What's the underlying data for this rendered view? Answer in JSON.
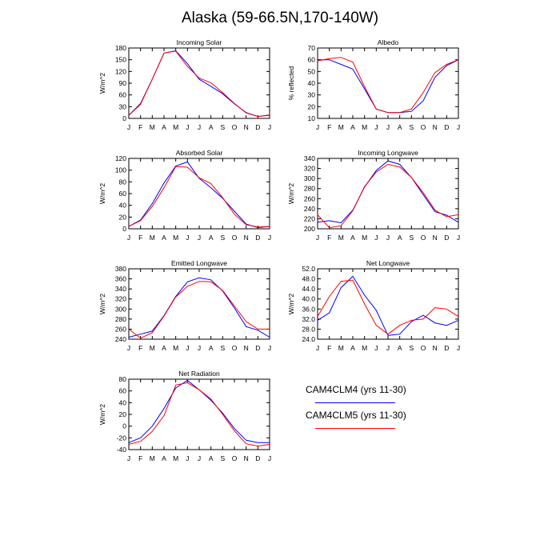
{
  "title": "Alaska (59-66.5N,170-140W)",
  "colors": {
    "series1": "#0000ff",
    "series2": "#ff0000"
  },
  "legend": {
    "series1_label": "CAM4CLM4 (yrs 11-30)",
    "series2_label": "CAM4CLM5 (yrs 11-30)"
  },
  "chart_data": [
    {
      "type": "line",
      "title": "Incoming Solar",
      "ylabel": "W/m^2",
      "categories": [
        "J",
        "F",
        "M",
        "A",
        "M",
        "J",
        "J",
        "A",
        "S",
        "O",
        "N",
        "D",
        "J"
      ],
      "ylim": [
        0,
        180
      ],
      "yticks": [
        0,
        30,
        60,
        90,
        120,
        150,
        180
      ],
      "ytick_labels": [
        "0",
        "30",
        "60",
        "90",
        "120",
        "150",
        "180"
      ],
      "series": [
        {
          "name": "CAM4CLM4 (yrs 11-30)",
          "values": [
            8,
            38,
            100,
            167,
            173,
            140,
            100,
            82,
            63,
            37,
            15,
            5,
            8
          ]
        },
        {
          "name": "CAM4CLM5 (yrs 11-30)",
          "values": [
            8,
            36,
            100,
            167,
            172,
            133,
            103,
            91,
            66,
            38,
            14,
            5,
            9
          ]
        }
      ]
    },
    {
      "type": "line",
      "title": "Albedo",
      "ylabel": "% reflected",
      "categories": [
        "J",
        "F",
        "M",
        "A",
        "M",
        "J",
        "J",
        "A",
        "S",
        "O",
        "N",
        "D",
        "J"
      ],
      "ylim": [
        10,
        70
      ],
      "yticks": [
        10,
        20,
        30,
        40,
        50,
        60,
        70
      ],
      "ytick_labels": [
        "10",
        "20",
        "30",
        "40",
        "50",
        "60",
        "70"
      ],
      "series": [
        {
          "name": "CAM4CLM4 (yrs 11-30)",
          "values": [
            60,
            60,
            56,
            52,
            35,
            18,
            15,
            15,
            16,
            25,
            45,
            55,
            60
          ]
        },
        {
          "name": "CAM4CLM5 (yrs 11-30)",
          "values": [
            59,
            61,
            62,
            58,
            37,
            18,
            15,
            15,
            18,
            32,
            49,
            56,
            60
          ]
        }
      ]
    },
    {
      "type": "line",
      "title": "Absorbed Solar",
      "ylabel": "W/m^2",
      "categories": [
        "J",
        "F",
        "M",
        "A",
        "M",
        "J",
        "J",
        "A",
        "S",
        "O",
        "N",
        "D",
        "J"
      ],
      "ylim": [
        0,
        120
      ],
      "yticks": [
        0,
        20,
        40,
        60,
        80,
        100,
        120
      ],
      "ytick_labels": [
        "0",
        "20",
        "40",
        "60",
        "80",
        "100",
        "120"
      ],
      "series": [
        {
          "name": "CAM4CLM4 (yrs 11-30)",
          "values": [
            4,
            15,
            43,
            78,
            107,
            114,
            86,
            70,
            52,
            30,
            8,
            2,
            4
          ]
        },
        {
          "name": "CAM4CLM5 (yrs 11-30)",
          "values": [
            4,
            14,
            38,
            70,
            106,
            105,
            87,
            77,
            53,
            25,
            7,
            3,
            4
          ]
        }
      ]
    },
    {
      "type": "line",
      "title": "Incoming Longwave",
      "ylabel": "W/m^2",
      "categories": [
        "J",
        "F",
        "M",
        "A",
        "M",
        "J",
        "J",
        "A",
        "S",
        "O",
        "N",
        "D",
        "J"
      ],
      "ylim": [
        200,
        340
      ],
      "yticks": [
        200,
        220,
        240,
        260,
        280,
        300,
        320,
        340
      ],
      "ytick_labels": [
        "200",
        "220",
        "240",
        "260",
        "280",
        "300",
        "320",
        "340"
      ],
      "series": [
        {
          "name": "CAM4CLM4 (yrs 11-30)",
          "values": [
            213,
            216,
            212,
            237,
            283,
            316,
            335,
            328,
            302,
            268,
            234,
            227,
            213
          ]
        },
        {
          "name": "CAM4CLM5 (yrs 11-30)",
          "values": [
            228,
            202,
            206,
            236,
            284,
            313,
            328,
            323,
            302,
            272,
            237,
            224,
            228
          ]
        }
      ]
    },
    {
      "type": "line",
      "title": "Emitted Longwave",
      "ylabel": "W/m^2",
      "categories": [
        "J",
        "F",
        "M",
        "A",
        "M",
        "J",
        "J",
        "A",
        "S",
        "O",
        "N",
        "D",
        "J"
      ],
      "ylim": [
        240,
        380
      ],
      "yticks": [
        240,
        260,
        280,
        300,
        320,
        340,
        360,
        380
      ],
      "ytick_labels": [
        "240",
        "260",
        "280",
        "300",
        "320",
        "340",
        "360",
        "380"
      ],
      "series": [
        {
          "name": "CAM4CLM4 (yrs 11-30)",
          "values": [
            244,
            250,
            256,
            287,
            325,
            354,
            362,
            358,
            336,
            302,
            265,
            258,
            244
          ]
        },
        {
          "name": "CAM4CLM5 (yrs 11-30)",
          "values": [
            260,
            242,
            253,
            286,
            324,
            345,
            355,
            354,
            337,
            306,
            275,
            260,
            260
          ]
        }
      ]
    },
    {
      "type": "line",
      "title": "Net Longwave",
      "ylabel": "W/m^2",
      "categories": [
        "J",
        "F",
        "M",
        "A",
        "M",
        "J",
        "J",
        "A",
        "S",
        "O",
        "N",
        "D",
        "J"
      ],
      "ylim": [
        24,
        52
      ],
      "yticks": [
        24,
        28,
        32,
        36,
        40,
        44,
        48,
        52
      ],
      "ytick_labels": [
        "24.0",
        "28.0",
        "32.0",
        "36.0",
        "40.0",
        "44.0",
        "48.0",
        "52.0"
      ],
      "series": [
        {
          "name": "CAM4CLM4 (yrs 11-30)",
          "values": [
            31.5,
            34.5,
            44.5,
            49,
            41.5,
            35.5,
            25.5,
            26,
            31,
            33.5,
            30.5,
            29.5,
            31.5
          ]
        },
        {
          "name": "CAM4CLM5 (yrs 11-30)",
          "values": [
            33,
            41,
            47,
            47.5,
            38,
            29.5,
            26,
            29.5,
            31.5,
            32,
            36.5,
            36,
            33
          ]
        }
      ]
    },
    {
      "type": "line",
      "title": "Net Radiation",
      "ylabel": "W/m^2",
      "categories": [
        "J",
        "F",
        "M",
        "A",
        "M",
        "J",
        "J",
        "A",
        "S",
        "O",
        "N",
        "D",
        "J"
      ],
      "ylim": [
        -40,
        80
      ],
      "yticks": [
        -40,
        -20,
        0,
        20,
        40,
        60,
        80
      ],
      "ytick_labels": [
        "-40",
        "-20",
        "0",
        "20",
        "40",
        "60",
        "80"
      ],
      "series": [
        {
          "name": "CAM4CLM4 (yrs 11-30)",
          "values": [
            -28,
            -20,
            0,
            30,
            65,
            78,
            62,
            44,
            22,
            -4,
            -24,
            -28,
            -28
          ]
        },
        {
          "name": "CAM4CLM5 (yrs 11-30)",
          "values": [
            -31,
            -26,
            -9,
            18,
            70,
            74,
            62,
            46,
            20,
            -8,
            -30,
            -34,
            -31
          ]
        }
      ]
    }
  ]
}
